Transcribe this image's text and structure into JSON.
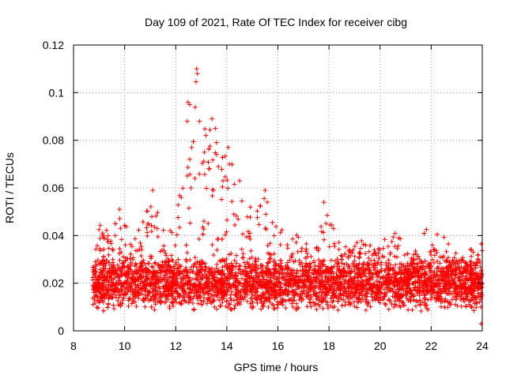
{
  "chart_data": {
    "type": "scatter",
    "title": "Day 109 of 2021, Rate Of TEC Index for receiver cibg",
    "xlabel": "GPS time / hours",
    "ylabel": "ROTI / TECUs",
    "xlim": [
      8,
      24
    ],
    "ylim": [
      0,
      0.12
    ],
    "x_ticks": [
      8,
      10,
      12,
      14,
      16,
      18,
      20,
      22,
      24
    ],
    "x_tick_labels": [
      "8",
      "10",
      "12",
      "14",
      "16",
      "18",
      "20",
      "22",
      "24"
    ],
    "y_ticks": [
      0,
      0.02,
      0.04,
      0.06,
      0.08,
      0.1,
      0.12
    ],
    "y_tick_labels": [
      "0",
      "0.02",
      "0.04",
      "0.06",
      "0.08",
      "0.1",
      "0.12"
    ],
    "grid": true,
    "marker": "+",
    "color": "#ff0000",
    "series": [
      {
        "name": "ROTI",
        "baseline_range": [
          8.75,
          24.0
        ],
        "typical_band": [
          0.008,
          0.03
        ],
        "envelope": [
          {
            "x": 8.8,
            "y": 0.03
          },
          {
            "x": 9.0,
            "y": 0.046
          },
          {
            "x": 9.5,
            "y": 0.043
          },
          {
            "x": 9.8,
            "y": 0.051
          },
          {
            "x": 10.3,
            "y": 0.04
          },
          {
            "x": 10.6,
            "y": 0.046
          },
          {
            "x": 11.0,
            "y": 0.054
          },
          {
            "x": 11.1,
            "y": 0.059
          },
          {
            "x": 11.5,
            "y": 0.045
          },
          {
            "x": 12.0,
            "y": 0.05
          },
          {
            "x": 12.5,
            "y": 0.096
          },
          {
            "x": 12.7,
            "y": 0.09
          },
          {
            "x": 12.8,
            "y": 0.11
          },
          {
            "x": 13.0,
            "y": 0.085
          },
          {
            "x": 13.4,
            "y": 0.089
          },
          {
            "x": 13.6,
            "y": 0.074
          },
          {
            "x": 14.0,
            "y": 0.077
          },
          {
            "x": 14.5,
            "y": 0.063
          },
          {
            "x": 15.0,
            "y": 0.05
          },
          {
            "x": 15.5,
            "y": 0.059
          },
          {
            "x": 16.0,
            "y": 0.05
          },
          {
            "x": 16.5,
            "y": 0.04
          },
          {
            "x": 17.0,
            "y": 0.045
          },
          {
            "x": 17.5,
            "y": 0.04
          },
          {
            "x": 17.8,
            "y": 0.054
          },
          {
            "x": 18.5,
            "y": 0.035
          },
          {
            "x": 19.2,
            "y": 0.04
          },
          {
            "x": 19.8,
            "y": 0.034
          },
          {
            "x": 20.5,
            "y": 0.045
          },
          {
            "x": 21.2,
            "y": 0.03
          },
          {
            "x": 21.8,
            "y": 0.043
          },
          {
            "x": 22.5,
            "y": 0.04
          },
          {
            "x": 23.3,
            "y": 0.032
          },
          {
            "x": 23.9,
            "y": 0.038
          }
        ],
        "notable_points": [
          {
            "x": 12.82,
            "y": 0.11
          },
          {
            "x": 12.85,
            "y": 0.108
          },
          {
            "x": 12.48,
            "y": 0.096
          },
          {
            "x": 12.55,
            "y": 0.095
          },
          {
            "x": 13.42,
            "y": 0.089
          },
          {
            "x": 12.93,
            "y": 0.088
          },
          {
            "x": 13.55,
            "y": 0.085
          },
          {
            "x": 13.18,
            "y": 0.082
          },
          {
            "x": 13.6,
            "y": 0.079
          },
          {
            "x": 14.05,
            "y": 0.077
          },
          {
            "x": 12.62,
            "y": 0.077
          },
          {
            "x": 13.12,
            "y": 0.075
          },
          {
            "x": 13.6,
            "y": 0.074
          },
          {
            "x": 12.55,
            "y": 0.072
          },
          {
            "x": 14.1,
            "y": 0.07
          },
          {
            "x": 13.3,
            "y": 0.068
          },
          {
            "x": 12.45,
            "y": 0.065
          },
          {
            "x": 12.75,
            "y": 0.064
          },
          {
            "x": 13.85,
            "y": 0.063
          },
          {
            "x": 14.5,
            "y": 0.063
          },
          {
            "x": 12.6,
            "y": 0.06
          },
          {
            "x": 15.5,
            "y": 0.059
          },
          {
            "x": 11.1,
            "y": 0.059
          },
          {
            "x": 17.8,
            "y": 0.054
          },
          {
            "x": 9.8,
            "y": 0.051
          },
          {
            "x": 23.95,
            "y": 0.003
          }
        ]
      }
    ]
  }
}
